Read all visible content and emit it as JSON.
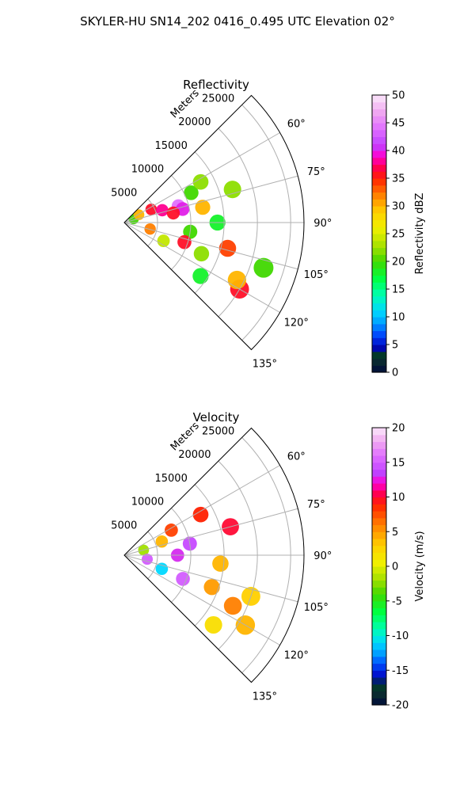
{
  "figure": {
    "suptitle": "SKYLER-HU  SN14_202  0416_0.495 UTC Elevation 02°"
  },
  "chart_data": [
    {
      "type": "heatmap",
      "subtype": "radar-ppi-sector",
      "title": "Reflectivity",
      "range_label": "Meters",
      "range_ticks": [
        5000,
        10000,
        15000,
        20000,
        25000
      ],
      "range_max": 27000,
      "azimuth_range_deg": [
        45,
        135
      ],
      "azimuth_ticks": [
        "60°",
        "75°",
        "90°",
        "105°",
        "120°",
        "135°"
      ],
      "colorbar": {
        "label": "Reflectivity dBZ",
        "min": 0,
        "max": 50,
        "ticks": [
          0,
          5,
          10,
          15,
          20,
          25,
          30,
          35,
          40,
          45,
          50
        ],
        "stops": [
          {
            "v": 0,
            "c": "#000a3c"
          },
          {
            "v": 2,
            "c": "#0a2a30"
          },
          {
            "v": 3.5,
            "c": "#003c28"
          },
          {
            "v": 4.5,
            "c": "#0000c0"
          },
          {
            "v": 7,
            "c": "#0050ff"
          },
          {
            "v": 9,
            "c": "#00a0ff"
          },
          {
            "v": 11,
            "c": "#00d8ff"
          },
          {
            "v": 14,
            "c": "#00ffb0"
          },
          {
            "v": 17,
            "c": "#00ff40"
          },
          {
            "v": 20,
            "c": "#40d800"
          },
          {
            "v": 22.5,
            "c": "#a0e000"
          },
          {
            "v": 26,
            "c": "#f0f000"
          },
          {
            "v": 29,
            "c": "#ffd000"
          },
          {
            "v": 32,
            "c": "#ff8000"
          },
          {
            "v": 35,
            "c": "#ff2000"
          },
          {
            "v": 37,
            "c": "#ff0050"
          },
          {
            "v": 39,
            "c": "#ff00d0"
          },
          {
            "v": 41,
            "c": "#c040ff"
          },
          {
            "v": 44,
            "c": "#e070ff"
          },
          {
            "v": 47,
            "c": "#f0a8f0"
          },
          {
            "v": 50,
            "c": "#fae8fa"
          }
        ]
      },
      "cells": [
        {
          "r": 1500,
          "az": 70,
          "val": 20
        },
        {
          "r": 2500,
          "az": 62,
          "val": 30
        },
        {
          "r": 4500,
          "az": 64,
          "val": 36
        },
        {
          "r": 6000,
          "az": 72,
          "val": 38
        },
        {
          "r": 8500,
          "az": 73,
          "val": 44
        },
        {
          "r": 9000,
          "az": 77,
          "val": 40
        },
        {
          "r": 7500,
          "az": 79,
          "val": 36
        },
        {
          "r": 11000,
          "az": 66,
          "val": 20
        },
        {
          "r": 13000,
          "az": 62,
          "val": 22
        },
        {
          "r": 12000,
          "az": 79,
          "val": 30
        },
        {
          "r": 14000,
          "az": 90,
          "val": 18
        },
        {
          "r": 10000,
          "az": 98,
          "val": 20
        },
        {
          "r": 9500,
          "az": 108,
          "val": 36
        },
        {
          "r": 12500,
          "az": 112,
          "val": 22
        },
        {
          "r": 16000,
          "az": 104,
          "val": 34
        },
        {
          "r": 4000,
          "az": 104,
          "val": 32
        },
        {
          "r": 6500,
          "az": 115,
          "val": 24
        },
        {
          "r": 14000,
          "az": 125,
          "val": 18
        },
        {
          "r": 20000,
          "az": 120,
          "val": 36
        },
        {
          "r": 22000,
          "az": 108,
          "val": 20
        },
        {
          "r": 19000,
          "az": 117,
          "val": 30
        },
        {
          "r": 17000,
          "az": 73,
          "val": 22
        }
      ]
    },
    {
      "type": "heatmap",
      "subtype": "radar-ppi-sector",
      "title": "Velocity",
      "range_label": "Meters",
      "range_ticks": [
        5000,
        10000,
        15000,
        20000,
        25000
      ],
      "range_max": 27000,
      "azimuth_range_deg": [
        45,
        135
      ],
      "azimuth_ticks": [
        "60°",
        "75°",
        "90°",
        "105°",
        "120°",
        "135°"
      ],
      "colorbar": {
        "label": "Velocity (m/s)",
        "min": -20,
        "max": 20,
        "ticks": [
          -20,
          -15,
          -10,
          -5,
          0,
          5,
          10,
          15,
          20
        ],
        "stops": [
          {
            "v": -20,
            "c": "#000a3c"
          },
          {
            "v": -18.5,
            "c": "#0a2a30"
          },
          {
            "v": -17,
            "c": "#003c28"
          },
          {
            "v": -16,
            "c": "#0000c0"
          },
          {
            "v": -14,
            "c": "#0050ff"
          },
          {
            "v": -12.5,
            "c": "#00a0ff"
          },
          {
            "v": -11,
            "c": "#00d8ff"
          },
          {
            "v": -9,
            "c": "#00ffb0"
          },
          {
            "v": -6.5,
            "c": "#00ff40"
          },
          {
            "v": -4,
            "c": "#40d800"
          },
          {
            "v": -2,
            "c": "#a0e000"
          },
          {
            "v": 0.5,
            "c": "#f0f000"
          },
          {
            "v": 3,
            "c": "#ffd000"
          },
          {
            "v": 6,
            "c": "#ff8000"
          },
          {
            "v": 9,
            "c": "#ff2000"
          },
          {
            "v": 10.5,
            "c": "#ff0050"
          },
          {
            "v": 12,
            "c": "#ff00d0"
          },
          {
            "v": 13.5,
            "c": "#c040ff"
          },
          {
            "v": 16,
            "c": "#e070ff"
          },
          {
            "v": 18,
            "c": "#f0a8f0"
          },
          {
            "v": 20,
            "c": "#fae8fa"
          }
        ]
      },
      "cells": [
        {
          "r": 3000,
          "az": 75,
          "val": -2
        },
        {
          "r": 6000,
          "az": 70,
          "val": 4
        },
        {
          "r": 8000,
          "az": 62,
          "val": 8
        },
        {
          "r": 13000,
          "az": 62,
          "val": 9
        },
        {
          "r": 10000,
          "az": 80,
          "val": 14
        },
        {
          "r": 8000,
          "az": 90,
          "val": 13
        },
        {
          "r": 3500,
          "az": 100,
          "val": 15
        },
        {
          "r": 6000,
          "az": 110,
          "val": -11
        },
        {
          "r": 9500,
          "az": 112,
          "val": 15
        },
        {
          "r": 14500,
          "az": 95,
          "val": 4
        },
        {
          "r": 14000,
          "az": 110,
          "val": 5
        },
        {
          "r": 18000,
          "az": 115,
          "val": 6
        },
        {
          "r": 20000,
          "az": 108,
          "val": 3
        },
        {
          "r": 21000,
          "az": 120,
          "val": 4
        },
        {
          "r": 16500,
          "az": 75,
          "val": 10
        },
        {
          "r": 17000,
          "az": 128,
          "val": 2
        }
      ]
    }
  ]
}
